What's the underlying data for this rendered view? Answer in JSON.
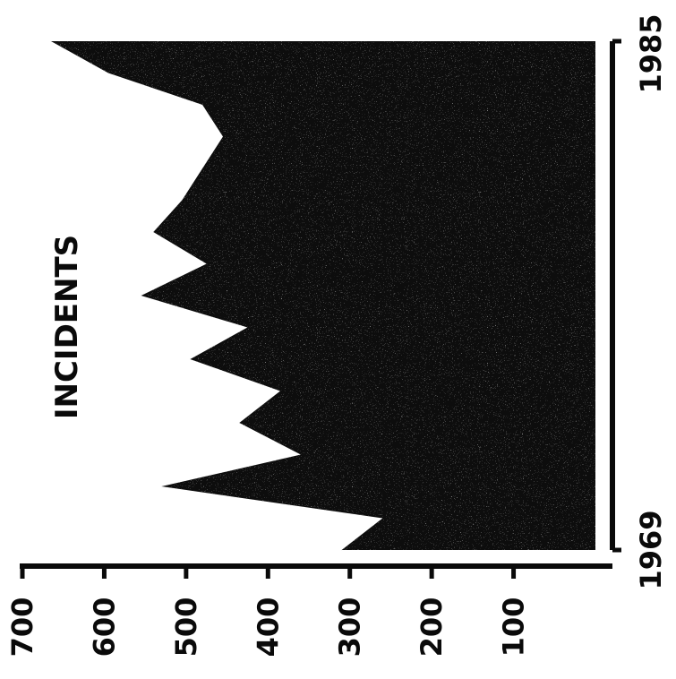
{
  "chart_data": {
    "type": "area",
    "title": "INCIDENTS",
    "xlabel": "",
    "ylabel": "",
    "x": [
      1969,
      1970,
      1971,
      1972,
      1973,
      1974,
      1975,
      1976,
      1977,
      1978,
      1979,
      1980,
      1981,
      1982,
      1983,
      1984,
      1985
    ],
    "series": [
      {
        "values": [
          310,
          260,
          530,
          360,
          435,
          385,
          495,
          425,
          555,
          475,
          540,
          505,
          480,
          455,
          480,
          595,
          665
        ]
      }
    ],
    "x_tick_labels": [
      "1969",
      "1985"
    ],
    "y_tick_labels": [
      "700",
      "600",
      "500",
      "400",
      "300",
      "200",
      "100"
    ],
    "y_ticks": [
      700,
      600,
      500,
      400,
      300,
      200,
      100
    ],
    "ylim": [
      0,
      700
    ],
    "xlim": [
      1969,
      1985
    ],
    "orientation": "rotated 90 degrees counter-clockwise",
    "grid": false,
    "colors": {
      "fill": "#0b0b0b",
      "axis": "#0a0a0a",
      "background": "#ffffff"
    }
  }
}
